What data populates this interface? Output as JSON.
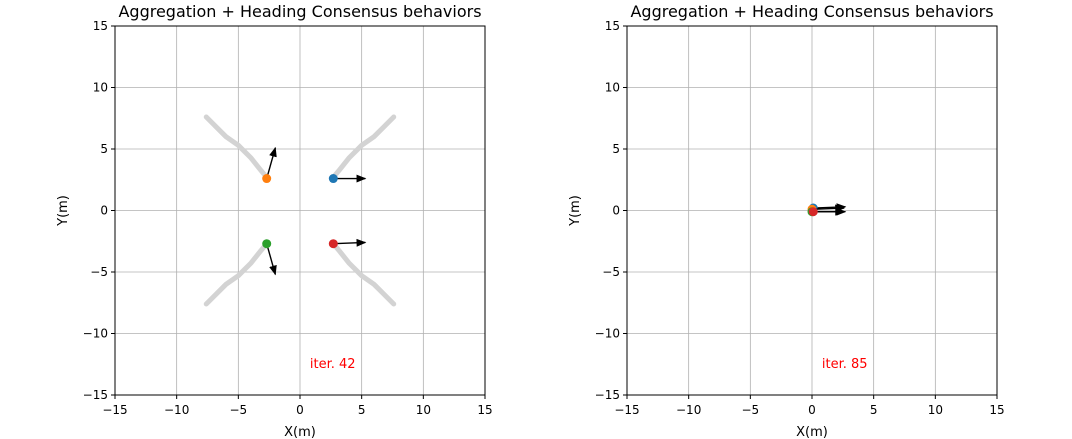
{
  "chart_data": [
    {
      "type": "scatter",
      "title": "Aggregation + Heading Consensus behaviors",
      "xlabel": "X(m)",
      "ylabel": "Y(m)",
      "xlim": [
        -15,
        15
      ],
      "ylim": [
        -15,
        15
      ],
      "xticks": [
        -15,
        -10,
        -5,
        0,
        5,
        10,
        15
      ],
      "yticks": [
        -15,
        -10,
        -5,
        0,
        5,
        10,
        15
      ],
      "xtick_labels": [
        "−15",
        "−10",
        "−5",
        "0",
        "5",
        "10",
        "15"
      ],
      "ytick_labels": [
        "−15",
        "−10",
        "−5",
        "0",
        "5",
        "10",
        "15"
      ],
      "grid": true,
      "annotation": {
        "text": "iter. 42",
        "x": 0.8,
        "y": -12.8,
        "color": "#ff0000"
      },
      "trails": [
        {
          "x": [
            7.6,
            7,
            6,
            5,
            4,
            3.2,
            2.7
          ],
          "y": [
            7.6,
            7,
            6,
            5.3,
            4.3,
            3.3,
            2.7
          ]
        },
        {
          "x": [
            -7.6,
            -7,
            -6,
            -5,
            -4,
            -3.2,
            -2.7
          ],
          "y": [
            7.6,
            7,
            6,
            5.3,
            4.3,
            3.3,
            2.7
          ]
        },
        {
          "x": [
            -7.6,
            -7,
            -6,
            -5,
            -4,
            -3.2,
            -2.7
          ],
          "y": [
            -7.6,
            -7,
            -6,
            -5.3,
            -4.3,
            -3.3,
            -2.7
          ]
        },
        {
          "x": [
            7.6,
            7,
            6,
            5,
            4,
            3.2,
            2.7
          ],
          "y": [
            -7.6,
            -7,
            -6,
            -5.3,
            -4.3,
            -3.3,
            -2.7
          ]
        }
      ],
      "agents": [
        {
          "x": 2.7,
          "y": 2.6,
          "color": "#1f77b4",
          "heading": [
            2.6,
            0
          ]
        },
        {
          "x": -2.7,
          "y": 2.6,
          "color": "#ff7f0e",
          "heading": [
            0.7,
            2.5
          ]
        },
        {
          "x": -2.7,
          "y": -2.7,
          "color": "#2ca02c",
          "heading": [
            0.7,
            -2.5
          ]
        },
        {
          "x": 2.7,
          "y": -2.7,
          "color": "#d62728",
          "heading": [
            2.6,
            0.1
          ]
        }
      ]
    },
    {
      "type": "scatter",
      "title": "Aggregation + Heading Consensus behaviors",
      "xlabel": "X(m)",
      "ylabel": "Y(m)",
      "xlim": [
        -15,
        15
      ],
      "ylim": [
        -15,
        15
      ],
      "xticks": [
        -15,
        -10,
        -5,
        0,
        5,
        10,
        15
      ],
      "yticks": [
        -15,
        -10,
        -5,
        0,
        5,
        10,
        15
      ],
      "xtick_labels": [
        "−15",
        "−10",
        "−5",
        "0",
        "5",
        "10",
        "15"
      ],
      "ytick_labels": [
        "−15",
        "−10",
        "−5",
        "0",
        "5",
        "10",
        "15"
      ],
      "grid": true,
      "annotation": {
        "text": "iter. 85",
        "x": 0.8,
        "y": -12.8,
        "color": "#ff0000"
      },
      "trails": [],
      "agents": [
        {
          "x": 0.1,
          "y": 0.2,
          "color": "#1f77b4",
          "heading": [
            2.6,
            0.1
          ]
        },
        {
          "x": 0.0,
          "y": 0.1,
          "color": "#ff7f0e",
          "heading": [
            2.6,
            0.1
          ]
        },
        {
          "x": 0.0,
          "y": -0.1,
          "color": "#2ca02c",
          "heading": [
            2.6,
            0.0
          ]
        },
        {
          "x": 0.1,
          "y": -0.1,
          "color": "#d62728",
          "heading": [
            2.6,
            0.0
          ]
        }
      ]
    }
  ]
}
